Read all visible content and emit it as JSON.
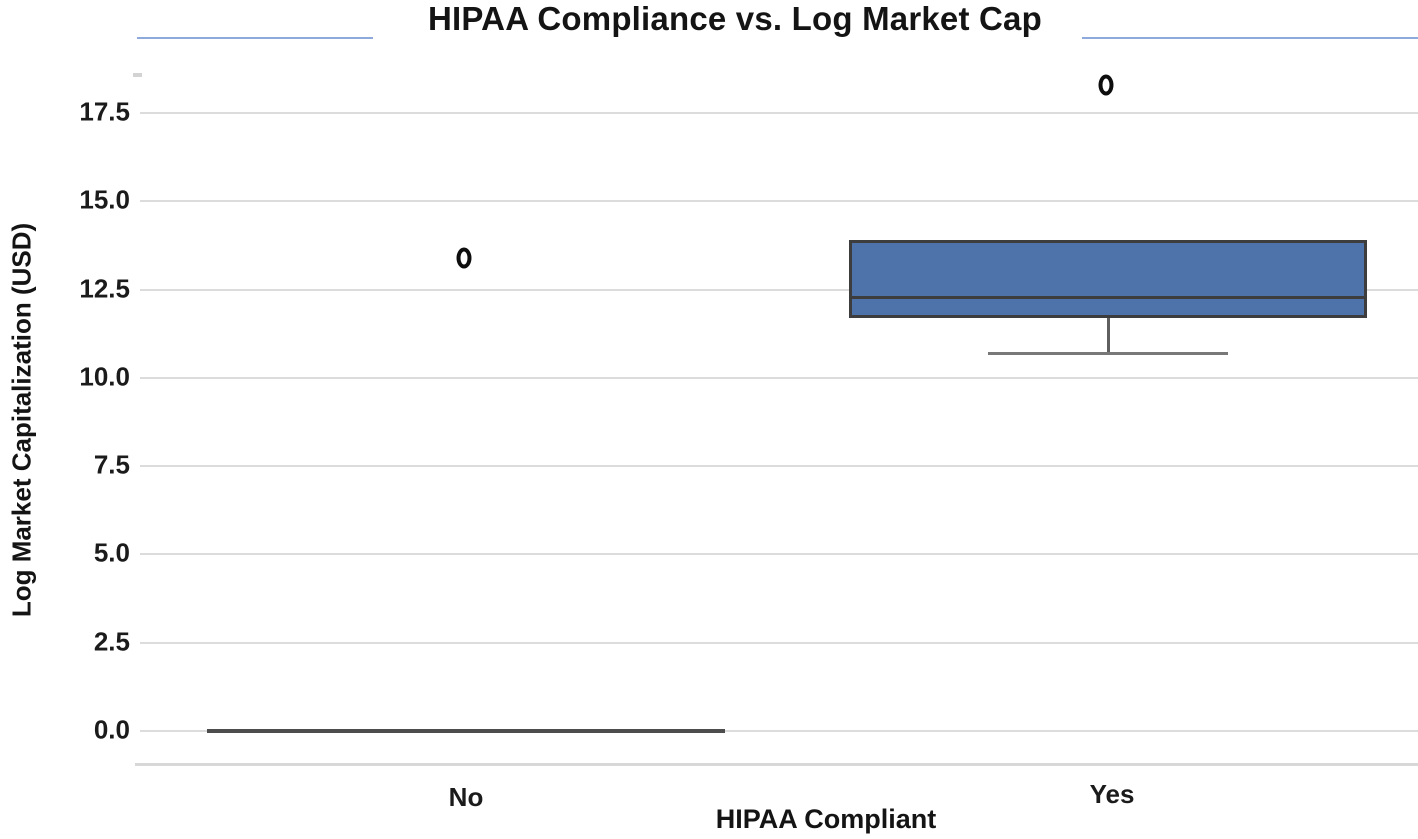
{
  "chart_data": {
    "type": "box",
    "title": "HIPAA Compliance vs. Log Market Cap",
    "xlabel": "HIPAA Compliant",
    "ylabel": "Log Market Capitalization (USD)",
    "categories": [
      "No",
      "Yes"
    ],
    "yticks": [
      0.0,
      2.5,
      5.0,
      7.5,
      10.0,
      12.5,
      15.0,
      17.5
    ],
    "ytick_labels": [
      "0.0",
      "2.5",
      "5.0",
      "7.5",
      "10.0",
      "12.5",
      "15.0",
      "17.5"
    ],
    "ylim": [
      -0.9,
      18.6
    ],
    "grid": true,
    "legend": "none",
    "series": [
      {
        "category": "No",
        "q1": 0.0,
        "median": 0.0,
        "q3": 0.0,
        "whisker_low": 0.0,
        "whisker_high": 0.0,
        "outliers": [
          13.4
        ]
      },
      {
        "category": "Yes",
        "q1": 11.7,
        "median": 12.3,
        "q3": 13.9,
        "whisker_low": 10.7,
        "whisker_high": 13.9,
        "outliers": [
          18.3
        ]
      }
    ],
    "colors": {
      "box_fill": "#4e73ab",
      "box_edge": "#3d3d3d",
      "median": "#3d3d3d",
      "whisker": "#5f5f5f",
      "cap": "#787878",
      "flat_line": "#4d4d4d",
      "gridline": "#dcdcdc",
      "spine": "#d8d8d8",
      "outlier": "#0e0e0e",
      "accent_rule": "#8ea9db",
      "text": "#141414"
    }
  }
}
